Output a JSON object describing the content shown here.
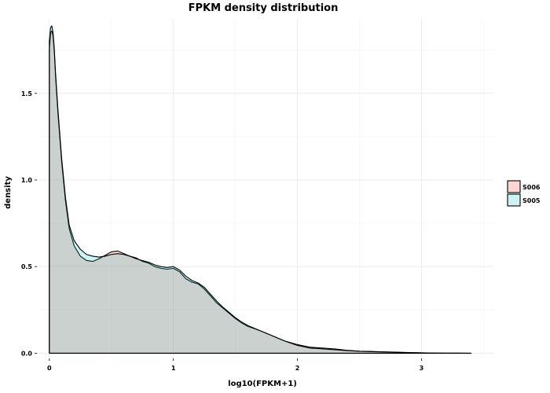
{
  "chart_data": {
    "type": "area",
    "title": "FPKM density distribution",
    "xlabel": "log10(FPKM+1)",
    "ylabel": "density",
    "xlim": [
      -0.1,
      3.58
    ],
    "ylim": [
      -0.03,
      1.93
    ],
    "x_ticks": [
      0,
      1,
      2,
      3
    ],
    "x_tick_labels": [
      "0",
      "1",
      "2",
      "3"
    ],
    "y_ticks": [
      0.0,
      0.5,
      1.0,
      1.5
    ],
    "y_tick_labels": [
      "0.0",
      "0.5",
      "1.0",
      "1.5"
    ],
    "grid": true,
    "legend_position": "right",
    "series": [
      {
        "name": "S006",
        "fill": "#f8766d",
        "fill_opacity": 0.3,
        "x": [
          0.0,
          0.01,
          0.02,
          0.03,
          0.04,
          0.05,
          0.07,
          0.1,
          0.13,
          0.16,
          0.2,
          0.25,
          0.3,
          0.35,
          0.4,
          0.45,
          0.5,
          0.55,
          0.6,
          0.65,
          0.7,
          0.75,
          0.8,
          0.85,
          0.9,
          0.95,
          1.0,
          1.05,
          1.1,
          1.15,
          1.2,
          1.25,
          1.3,
          1.35,
          1.4,
          1.45,
          1.5,
          1.55,
          1.6,
          1.7,
          1.8,
          1.9,
          2.0,
          2.1,
          2.2,
          2.3,
          2.4,
          2.5,
          2.6,
          2.7,
          2.8,
          2.9,
          3.0,
          3.1,
          3.2,
          3.3,
          3.4
        ],
        "y": [
          1.75,
          1.85,
          1.86,
          1.83,
          1.74,
          1.6,
          1.38,
          1.1,
          0.88,
          0.72,
          0.62,
          0.56,
          0.535,
          0.53,
          0.545,
          0.565,
          0.585,
          0.59,
          0.575,
          0.56,
          0.55,
          0.53,
          0.52,
          0.5,
          0.49,
          0.485,
          0.49,
          0.47,
          0.43,
          0.41,
          0.4,
          0.37,
          0.33,
          0.29,
          0.26,
          0.23,
          0.2,
          0.175,
          0.155,
          0.13,
          0.1,
          0.07,
          0.05,
          0.035,
          0.03,
          0.025,
          0.017,
          0.012,
          0.01,
          0.008,
          0.006,
          0.004,
          0.002,
          0.001,
          0.0005,
          0.0002,
          0.0
        ]
      },
      {
        "name": "S005",
        "fill": "#00bfc4",
        "fill_opacity": 0.2,
        "x": [
          0.0,
          0.01,
          0.02,
          0.03,
          0.04,
          0.05,
          0.07,
          0.1,
          0.13,
          0.16,
          0.2,
          0.25,
          0.3,
          0.35,
          0.4,
          0.45,
          0.5,
          0.55,
          0.6,
          0.65,
          0.7,
          0.75,
          0.8,
          0.85,
          0.9,
          0.95,
          1.0,
          1.05,
          1.1,
          1.15,
          1.2,
          1.25,
          1.3,
          1.35,
          1.4,
          1.45,
          1.5,
          1.55,
          1.6,
          1.7,
          1.8,
          1.9,
          2.0,
          2.1,
          2.2,
          2.3,
          2.4,
          2.5,
          2.6,
          2.7,
          2.8,
          2.9,
          3.0,
          3.1,
          3.2,
          3.3,
          3.4
        ],
        "y": [
          1.8,
          1.88,
          1.89,
          1.85,
          1.76,
          1.62,
          1.4,
          1.12,
          0.9,
          0.74,
          0.65,
          0.6,
          0.57,
          0.56,
          0.555,
          0.56,
          0.57,
          0.575,
          0.57,
          0.56,
          0.545,
          0.535,
          0.525,
          0.51,
          0.5,
          0.495,
          0.5,
          0.48,
          0.445,
          0.42,
          0.405,
          0.38,
          0.34,
          0.3,
          0.265,
          0.235,
          0.205,
          0.18,
          0.16,
          0.13,
          0.1,
          0.07,
          0.045,
          0.03,
          0.025,
          0.02,
          0.015,
          0.011,
          0.009,
          0.007,
          0.005,
          0.003,
          0.002,
          0.001,
          0.0005,
          0.0002,
          0.0
        ]
      }
    ]
  }
}
